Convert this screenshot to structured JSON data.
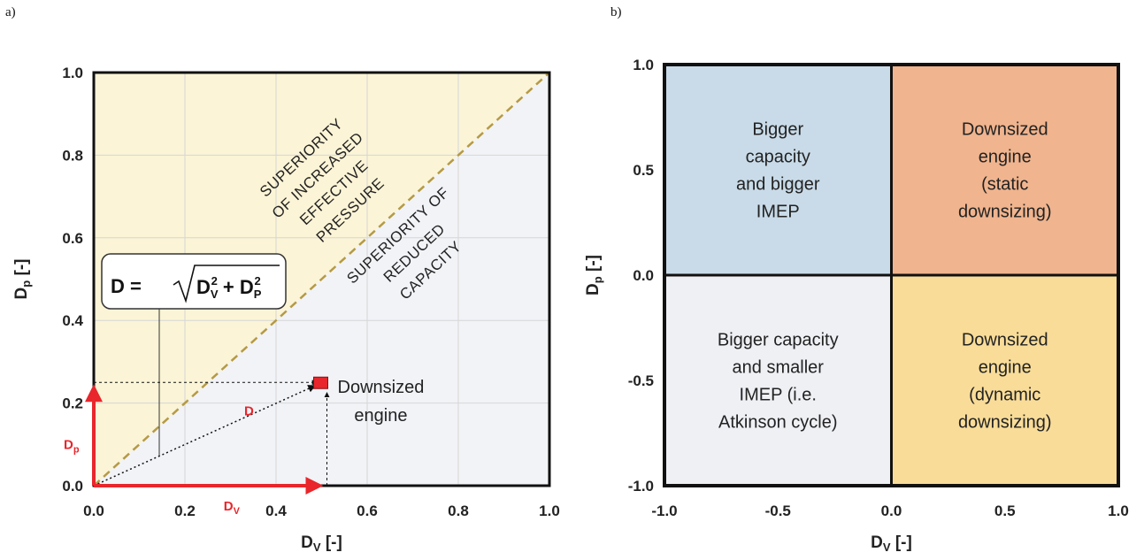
{
  "panel_a_label": "a)",
  "panel_b_label": "b)",
  "chart_data": [
    {
      "type": "line",
      "panel": "a",
      "xlabel": "D",
      "xlabel_sub": "V",
      "xlabel_unit": " [-]",
      "ylabel": "D",
      "ylabel_sub": "p",
      "ylabel_unit": " [-]",
      "xlim": [
        0,
        1
      ],
      "ylim": [
        0,
        1
      ],
      "xticks": [
        "0.0",
        "0.2",
        "0.4",
        "0.6",
        "0.8",
        "1.0"
      ],
      "yticks": [
        "0.0",
        "0.2",
        "0.4",
        "0.6",
        "0.8",
        "1.0"
      ],
      "tick_values": [
        0,
        0.2,
        0.4,
        0.6,
        0.8,
        1.0
      ],
      "grid": true,
      "diagonal": {
        "x": [
          0,
          1
        ],
        "y": [
          0,
          1
        ],
        "style": "dashed",
        "color": "#b59a45"
      },
      "upper_region_color": "#fbf4d6",
      "lower_region_color": "#f1f3f7",
      "point": {
        "x": 0.5,
        "y": 0.25,
        "color": "#e8262b"
      },
      "annotations": {
        "upper_region": [
          "SUPERIORITY",
          "OF INCREASED",
          "EFFECTIVE",
          "PRESSURE"
        ],
        "lower_region": [
          "SUPERIORITY OF",
          "REDUCED",
          "CAPACITY"
        ],
        "point_label": [
          "Downsized",
          "engine"
        ],
        "formula_lhs": "D = ",
        "formula_terms": [
          "D",
          "V",
          "2",
          " + D",
          "P",
          "2"
        ],
        "vector_d": "D",
        "vector_dp": "D",
        "vector_dp_sub": "p",
        "vector_dv": "D",
        "vector_dv_sub": "V"
      }
    },
    {
      "type": "table",
      "panel": "b",
      "xlabel": "D",
      "xlabel_sub": "V",
      "xlabel_unit": " [-]",
      "ylabel": "D",
      "ylabel_sub": "p",
      "ylabel_unit": " [-]",
      "xlim": [
        -1,
        1
      ],
      "ylim": [
        -1,
        1
      ],
      "xticks": [
        "-1.0",
        "-0.5",
        "0.0",
        "0.5",
        "1.0"
      ],
      "yticks": [
        "-1.0",
        "-0.5",
        "0.0",
        "0.5",
        "1.0"
      ],
      "tick_values": [
        -1,
        -0.5,
        0,
        0.5,
        1
      ],
      "quadrants": [
        {
          "position": "top-left",
          "color": "#c9dbe8",
          "lines": [
            "Bigger",
            "capacity",
            "and bigger",
            "IMEP"
          ]
        },
        {
          "position": "top-right",
          "color": "#f0b48e",
          "lines": [
            "Downsized",
            "engine",
            "(static",
            "downsizing)"
          ]
        },
        {
          "position": "bottom-left",
          "color": "#eef0f4",
          "lines": [
            "Bigger capacity",
            "and smaller",
            "IMEP (i.e.",
            "Atkinson cycle)"
          ]
        },
        {
          "position": "bottom-right",
          "color": "#f8dc98",
          "lines": [
            "Downsized",
            "engine",
            "(dynamic",
            "downsizing)"
          ]
        }
      ]
    }
  ]
}
